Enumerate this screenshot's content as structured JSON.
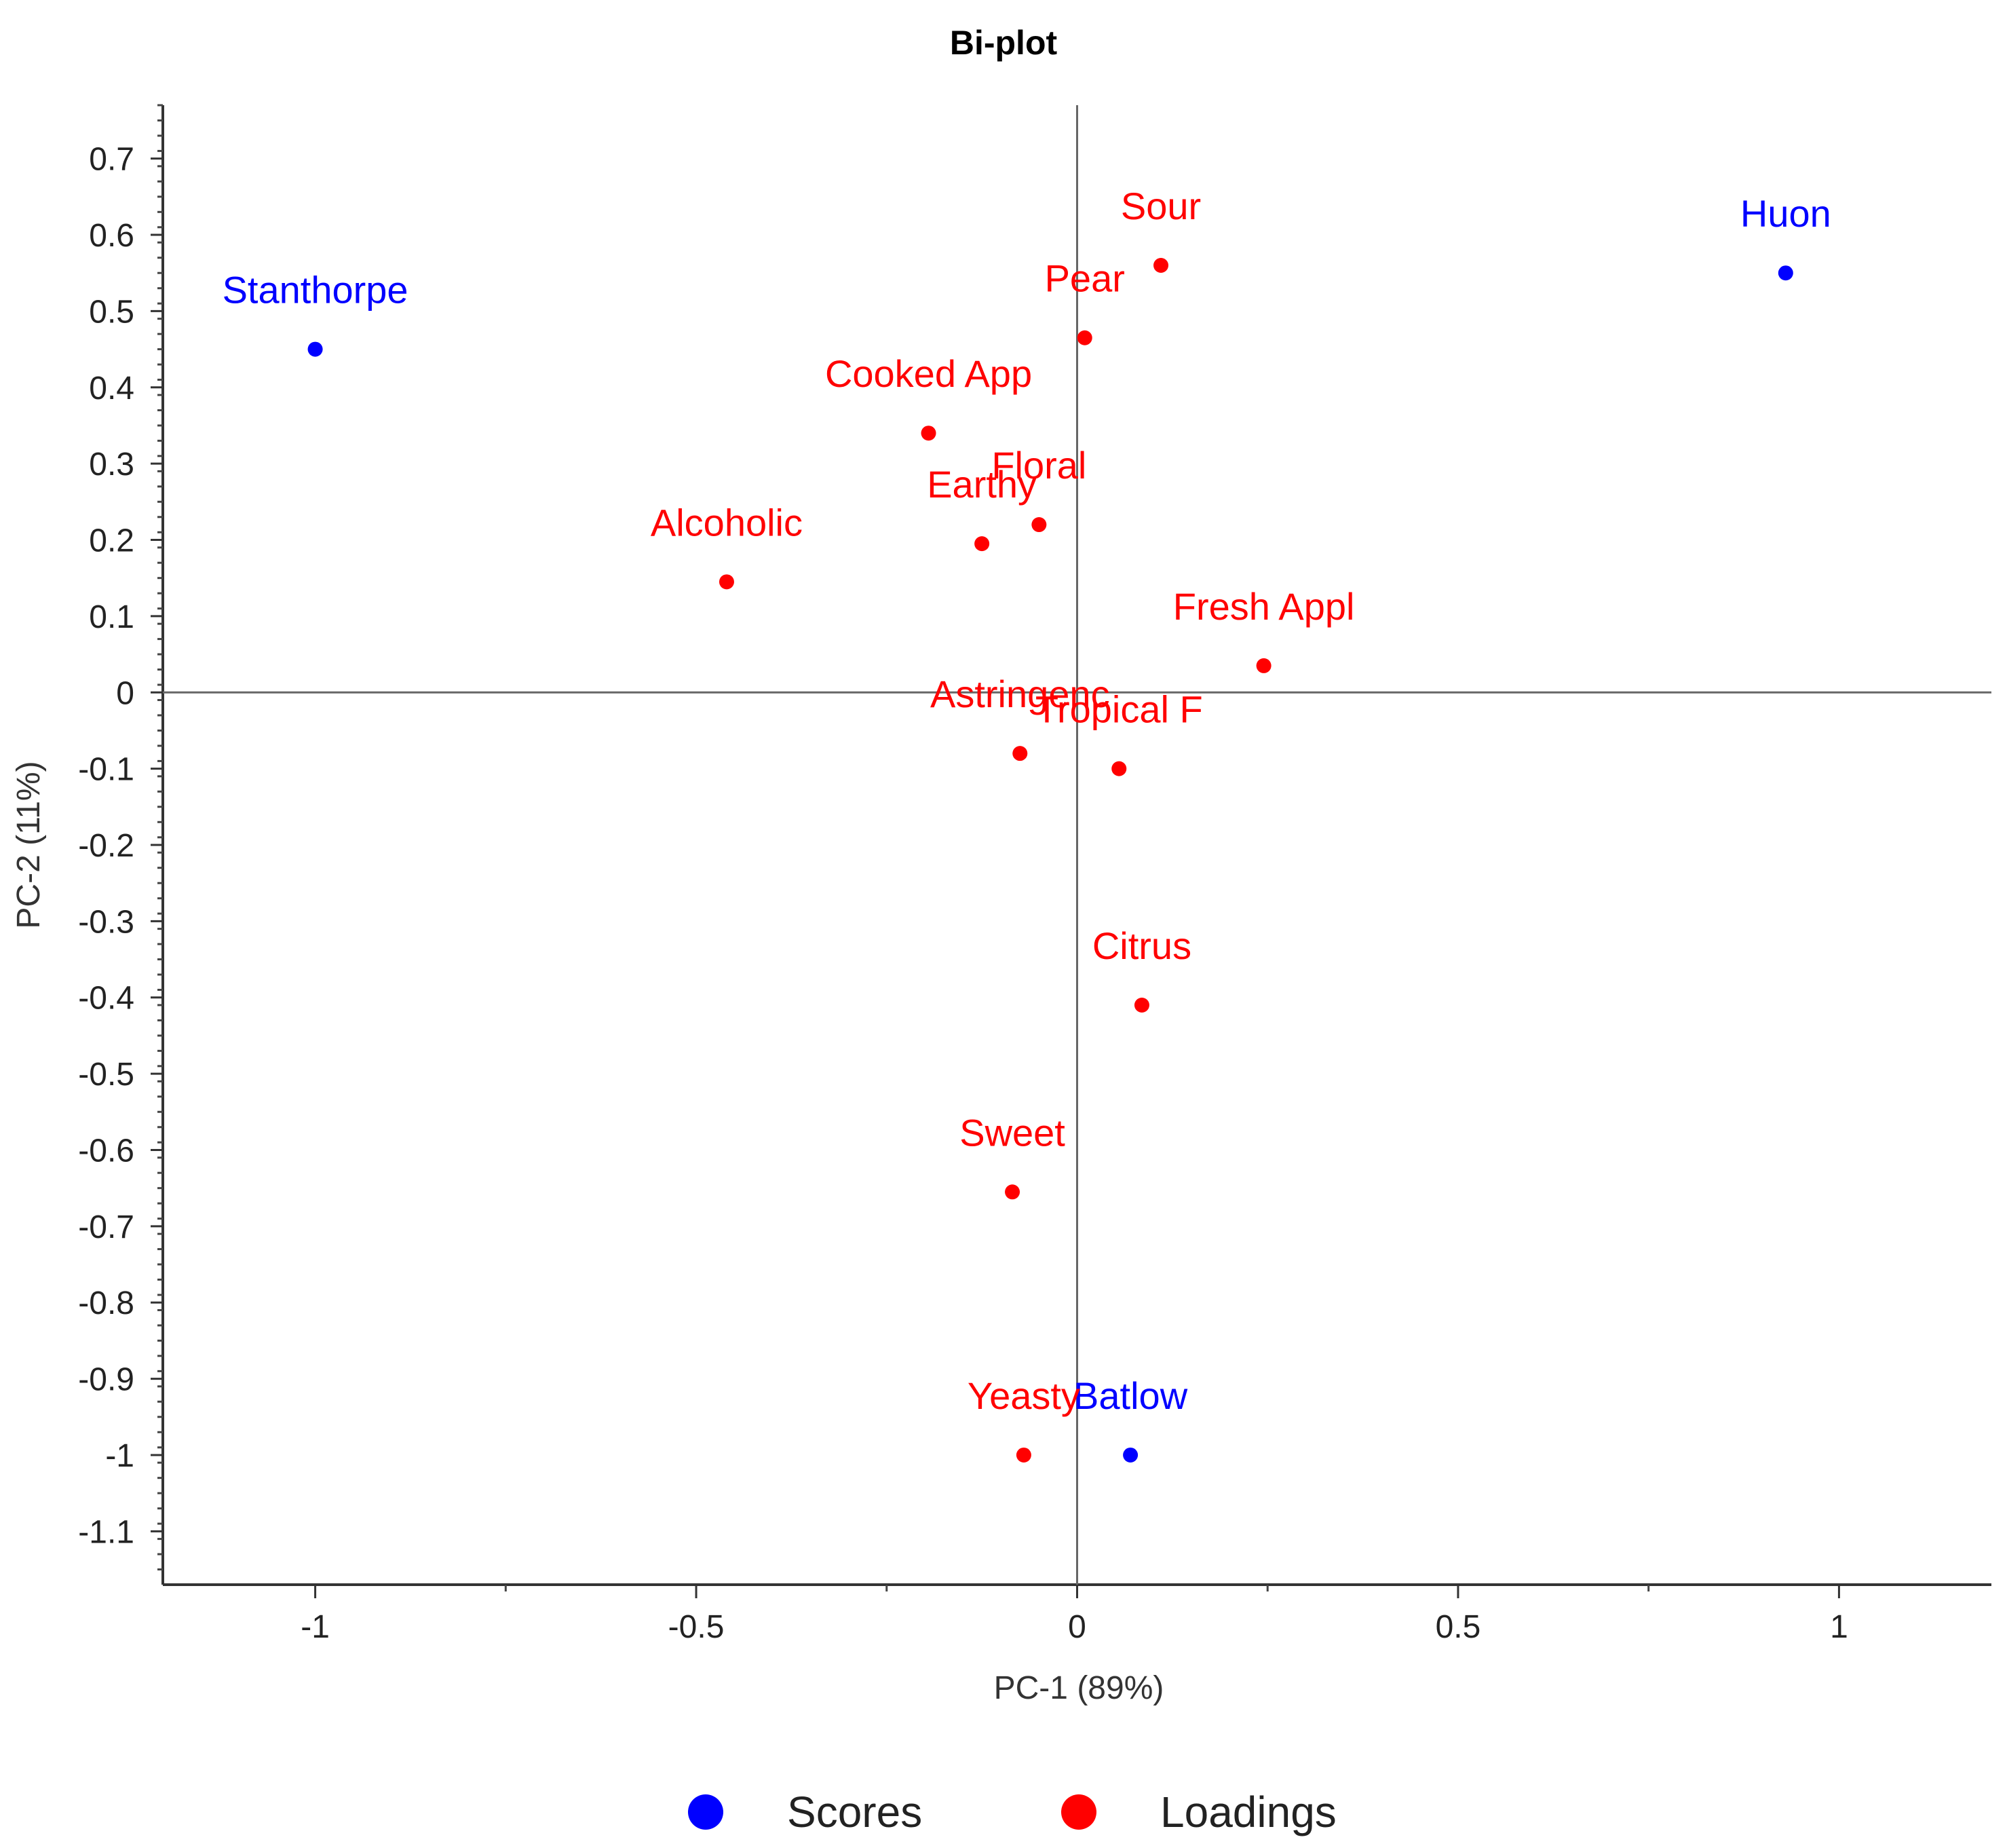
{
  "chart_data": {
    "type": "scatter",
    "title": "Bi-plot",
    "xlabel": "PC-1 (89%)",
    "ylabel": "PC-2 (11%)",
    "xlim": [
      -1.2,
      1.2
    ],
    "ylim": [
      -1.17,
      0.77
    ],
    "xticks": [
      -1,
      -0.5,
      0,
      0.5,
      1
    ],
    "xtick_labels": [
      "-1",
      "-0.5",
      "0",
      "0.5",
      "1"
    ],
    "yticks": [
      0.7,
      0.6,
      0.5,
      0.4,
      0.3,
      0.2,
      0.1,
      0,
      -0.1,
      -0.2,
      -0.3,
      -0.4,
      -0.5,
      -0.6,
      -0.7,
      -0.8,
      -0.9,
      -1,
      -1.1
    ],
    "ytick_labels": [
      "0.7",
      "0.6",
      "0.5",
      "0.4",
      "0.3",
      "0.2",
      "0.1",
      "0",
      "-0.1",
      "-0.2",
      "-0.3",
      "-0.4",
      "-0.5",
      "-0.6",
      "-0.7",
      "-0.8",
      "-0.9",
      "-1",
      "-1.1"
    ],
    "grid": false,
    "zero_lines": true,
    "legend_position": "bottom",
    "series": [
      {
        "name": "Scores",
        "color": "#0000ff",
        "points": [
          {
            "label": "Stanthorpe",
            "x": -1.0,
            "y": 0.45
          },
          {
            "label": "Huon",
            "x": 0.93,
            "y": 0.55
          },
          {
            "label": "Batlow",
            "x": 0.07,
            "y": -1.0
          }
        ]
      },
      {
        "name": "Loadings",
        "color": "#ff0000",
        "points": [
          {
            "label": "Sour",
            "x": 0.11,
            "y": 0.56
          },
          {
            "label": "Pear",
            "x": 0.01,
            "y": 0.465
          },
          {
            "label": "Cooked App",
            "x": -0.195,
            "y": 0.34
          },
          {
            "label": "Floral",
            "x": -0.05,
            "y": 0.22
          },
          {
            "label": "Earthy",
            "x": -0.125,
            "y": 0.195
          },
          {
            "label": "Alcoholic",
            "x": -0.46,
            "y": 0.145
          },
          {
            "label": "Fresh Appl",
            "x": 0.245,
            "y": 0.035
          },
          {
            "label": "Astringenc",
            "x": -0.075,
            "y": -0.08
          },
          {
            "label": "Tropical F",
            "x": 0.055,
            "y": -0.1
          },
          {
            "label": "Citrus",
            "x": 0.085,
            "y": -0.41
          },
          {
            "label": "Sweet",
            "x": -0.085,
            "y": -0.655
          },
          {
            "label": "Yeasty",
            "x": -0.07,
            "y": -1.0
          }
        ]
      }
    ]
  }
}
